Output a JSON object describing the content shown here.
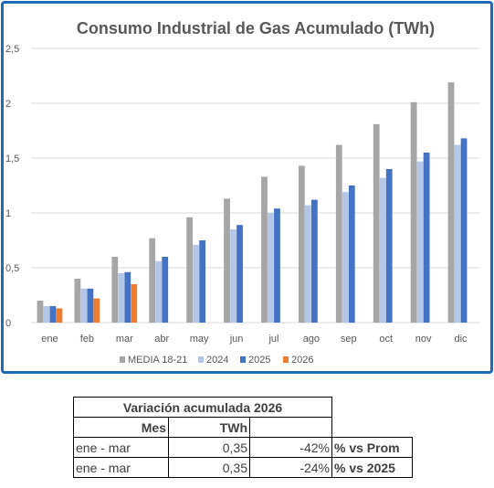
{
  "chart_data": {
    "type": "bar",
    "title": "Consumo Industrial de Gas Acumulado (TWh)",
    "categories": [
      "ene",
      "feb",
      "mar",
      "abr",
      "may",
      "jun",
      "jul",
      "ago",
      "sep",
      "oct",
      "nov",
      "dic"
    ],
    "ylim": [
      0,
      2.5
    ],
    "yticks": [
      "0",
      "0,5",
      "1",
      "1,5",
      "2",
      "2,5"
    ],
    "ytick_values": [
      0,
      0.5,
      1,
      1.5,
      2,
      2.5
    ],
    "grid": true,
    "legend_position": "bottom",
    "series": [
      {
        "name": "MEDIA 18-21",
        "color": "#a6a6a6",
        "values": [
          0.2,
          0.4,
          0.6,
          0.77,
          0.96,
          1.13,
          1.33,
          1.43,
          1.62,
          1.81,
          2.01,
          2.19
        ]
      },
      {
        "name": "2024",
        "color": "#b4c7e7",
        "values": [
          0.15,
          0.31,
          0.45,
          0.56,
          0.71,
          0.85,
          1.0,
          1.07,
          1.19,
          1.32,
          1.47,
          1.62
        ]
      },
      {
        "name": "2025",
        "color": "#4472c4",
        "values": [
          0.15,
          0.31,
          0.46,
          0.6,
          0.75,
          0.89,
          1.04,
          1.12,
          1.25,
          1.4,
          1.55,
          1.68
        ]
      },
      {
        "name": "2026",
        "color": "#ed7d31",
        "values": [
          0.13,
          0.22,
          0.35,
          null,
          null,
          null,
          null,
          null,
          null,
          null,
          null,
          null
        ]
      }
    ]
  },
  "table": {
    "title": "Variación acumulada 2026",
    "col_mes": "Mes",
    "col_twh": "TWh",
    "rows": [
      {
        "mes": "ene - mar",
        "twh": "0,35",
        "variation": "-42%",
        "label": "% vs Prom"
      },
      {
        "mes": "ene - mar",
        "twh": "0,35",
        "variation": "-24%",
        "label": "% vs 2025"
      }
    ]
  }
}
